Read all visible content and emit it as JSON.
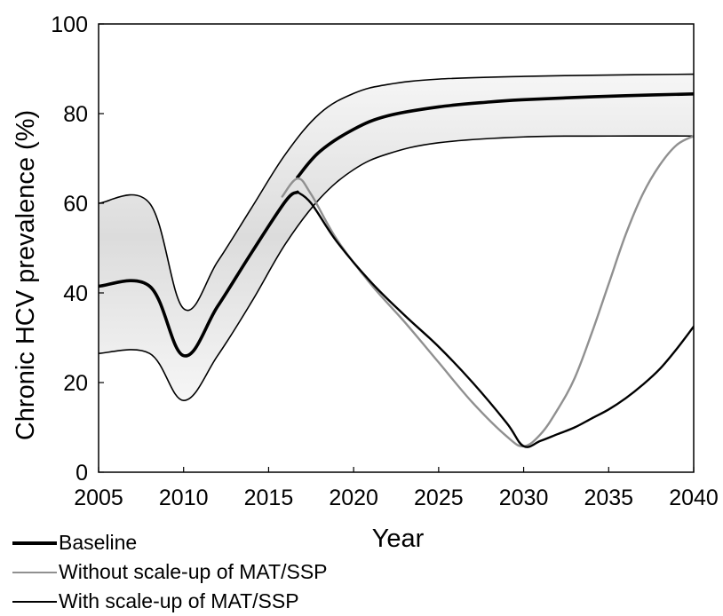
{
  "chart_data": {
    "type": "line",
    "xlabel": "Year",
    "ylabel": "Chronic HCV prevalence  (%)",
    "xlim": [
      2005,
      2040
    ],
    "ylim": [
      0,
      100
    ],
    "x_ticks": [
      "2005",
      "2010",
      "2015",
      "2020",
      "2025",
      "2030",
      "2035",
      "2040"
    ],
    "y_ticks": [
      "0",
      "20",
      "40",
      "60",
      "80",
      "100"
    ],
    "grid": false,
    "legend_position": "bottom-left, below axes",
    "uncertainty_band": {
      "color": "#e6e6e6",
      "edge_color": "#000000",
      "upper": {
        "x": [
          2005,
          2008,
          2010,
          2012,
          2014,
          2016,
          2018,
          2020,
          2022,
          2025,
          2030,
          2035,
          2040
        ],
        "y": [
          60,
          60,
          36.5,
          47,
          59,
          71,
          80,
          84.5,
          86.5,
          87.7,
          88.3,
          88.6,
          88.8
        ]
      },
      "lower": {
        "x": [
          2005,
          2008,
          2010,
          2012,
          2014,
          2016,
          2018,
          2020,
          2022,
          2025,
          2030,
          2035,
          2040
        ],
        "y": [
          26.5,
          26.5,
          16,
          26,
          38,
          51,
          61,
          67.5,
          71,
          73.5,
          74.8,
          75,
          75
        ]
      }
    },
    "series": [
      {
        "name": "Baseline",
        "color": "#000000",
        "width": "thick",
        "x": [
          2005,
          2008,
          2010,
          2012,
          2014,
          2016,
          2016.7
        ],
        "y": [
          41.5,
          41.5,
          26,
          37,
          49,
          60.5,
          62.5
        ]
      },
      {
        "name": "Baseline",
        "color": "#000000",
        "width": "thick",
        "x": [
          2016.7,
          2018,
          2020,
          2022,
          2025,
          2028,
          2030,
          2033,
          2036,
          2040
        ],
        "y": [
          65.8,
          71.5,
          76.5,
          79.5,
          81.5,
          82.6,
          83.1,
          83.6,
          84,
          84.4
        ]
      },
      {
        "name": "Without scale-up of MAT/SSP",
        "color": "#909090",
        "x": [
          2015.8,
          2016.7,
          2017.5,
          2019,
          2021,
          2023,
          2025,
          2027,
          2029,
          2030,
          2031,
          2032,
          2033,
          2034,
          2035,
          2036,
          2037,
          2038,
          2039,
          2040
        ],
        "y": [
          61.5,
          65.5,
          62,
          52,
          42,
          33.5,
          24.5,
          15.5,
          8,
          5.8,
          8.5,
          14,
          21,
          31,
          42,
          53,
          62,
          68.5,
          73,
          75
        ]
      },
      {
        "name": "With scale-up of MAT/SSP",
        "color": "#000000",
        "x": [
          2016.7,
          2017.5,
          2019,
          2021,
          2023,
          2025,
          2027,
          2029,
          2030,
          2031,
          2032,
          2033,
          2034,
          2035,
          2036,
          2037,
          2038,
          2039,
          2040
        ],
        "y": [
          62.5,
          60,
          51.5,
          42.5,
          35,
          28,
          20,
          11,
          5.8,
          7,
          8.5,
          10,
          12,
          14,
          16.5,
          19.5,
          23,
          27.5,
          32.5
        ]
      }
    ],
    "legend": [
      {
        "label": "Baseline",
        "color": "#000000",
        "thick": true
      },
      {
        "label": "Without scale-up of MAT/SSP",
        "color": "#909090",
        "thick": false
      },
      {
        "label": "With scale-up of MAT/SSP",
        "color": "#000000",
        "thick": false
      }
    ]
  }
}
